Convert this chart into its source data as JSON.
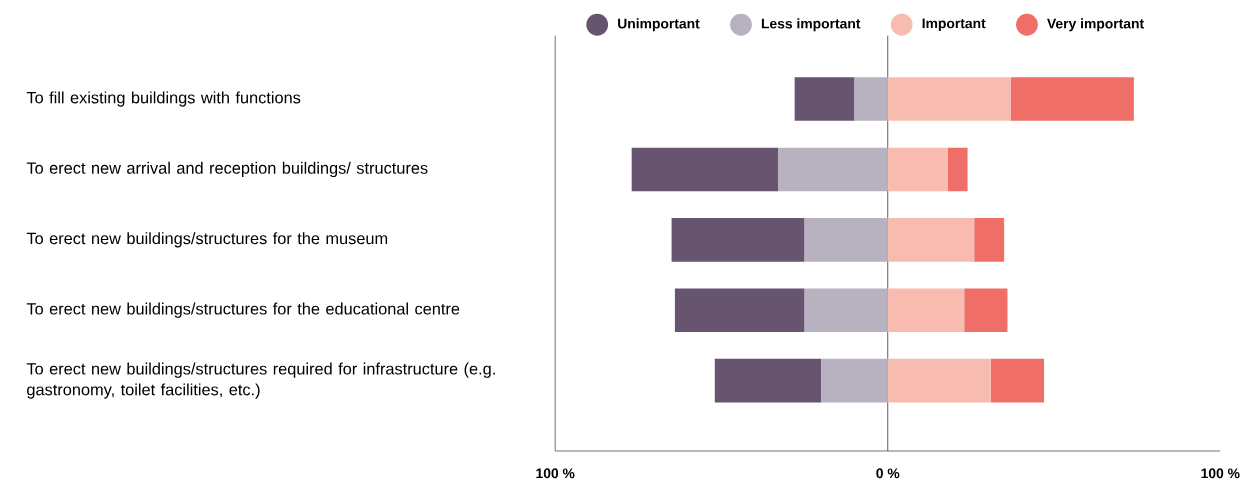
{
  "chart_data": {
    "type": "bar",
    "orientation": "horizontal",
    "stacked": true,
    "categories": [
      "To fill existing buildings with functions",
      "To erect new arrival and reception buildings/ structures",
      "To erect new buildings/structures for the museum",
      "To erect new buildings/structures for the educational centre",
      "To erect new buildings/structures required for infrastructure (e.g. gastronomy, toilet facilities, etc.)"
    ],
    "series": [
      {
        "name": "Less important",
        "color": "#b8b1bf",
        "values": [
          -10,
          -33,
          -25,
          -25,
          -20
        ]
      },
      {
        "name": "Unimportant",
        "color": "#67546f",
        "values": [
          -18,
          -44,
          -40,
          -39,
          -32
        ]
      },
      {
        "name": "Important",
        "color": "#f8bbb0",
        "values": [
          37,
          18,
          26,
          23,
          31
        ]
      },
      {
        "name": "Very important",
        "color": "#ef6e67",
        "values": [
          37,
          6,
          9,
          13,
          16
        ]
      }
    ],
    "xlim": [
      -100,
      100
    ],
    "xticks": [
      {
        "value": -100,
        "label": "100 %"
      },
      {
        "value": 0,
        "label": "0 %"
      },
      {
        "value": 100,
        "label": "100 %"
      }
    ],
    "ref_lines": [
      {
        "axis": "x",
        "value": 0
      }
    ],
    "grid": false,
    "legend": "top right"
  }
}
